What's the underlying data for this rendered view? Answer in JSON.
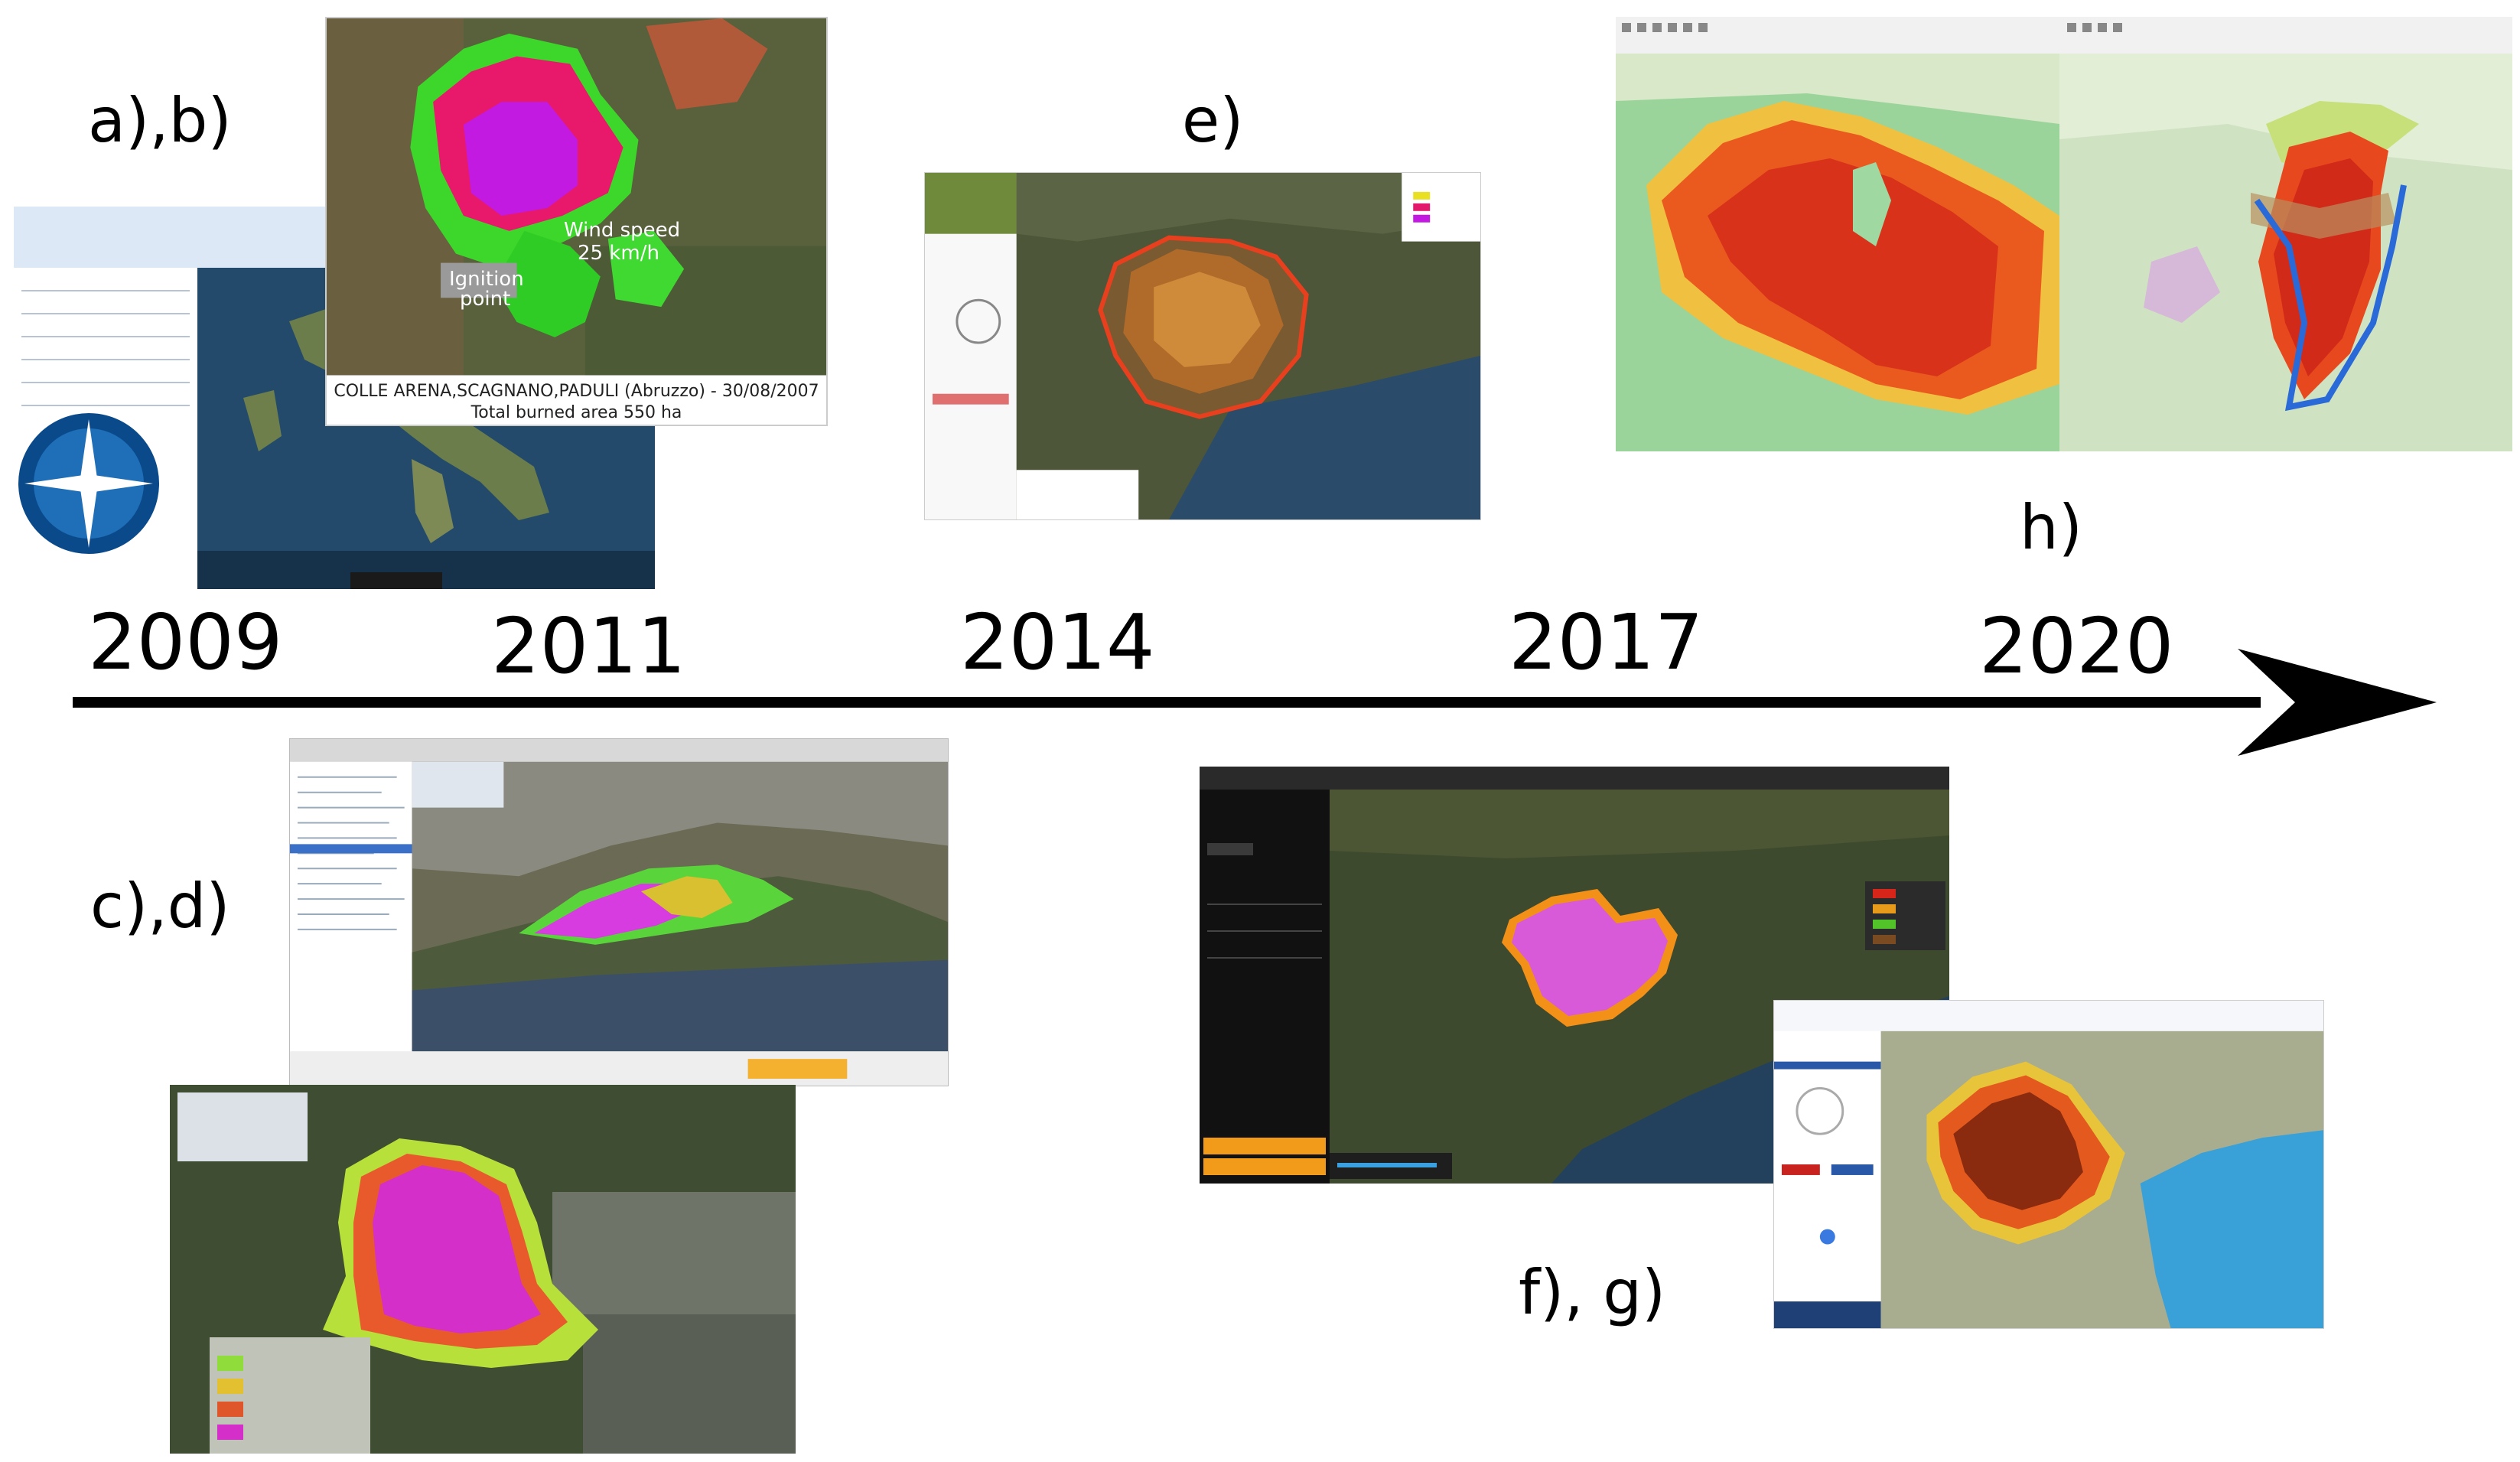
{
  "figure": {
    "labels": {
      "ab": "a),b)",
      "cd": "c),d)",
      "e": "e)",
      "fg": "f), g)",
      "h": "h)"
    },
    "years": [
      "2009",
      "2011",
      "2014",
      "2017",
      "2020"
    ],
    "screenshots": {
      "ab": {
        "caption_line1": "COLLE ARENA,SCAGNANO,PADULI (Abruzzo) - 30/08/2007",
        "caption_line2": "Total burned area 550 ha",
        "wind_label_line1": "Wind speed",
        "wind_label_line2": "25 km/h",
        "ignition_line1": "Ignition",
        "ignition_line2": "point"
      }
    }
  }
}
